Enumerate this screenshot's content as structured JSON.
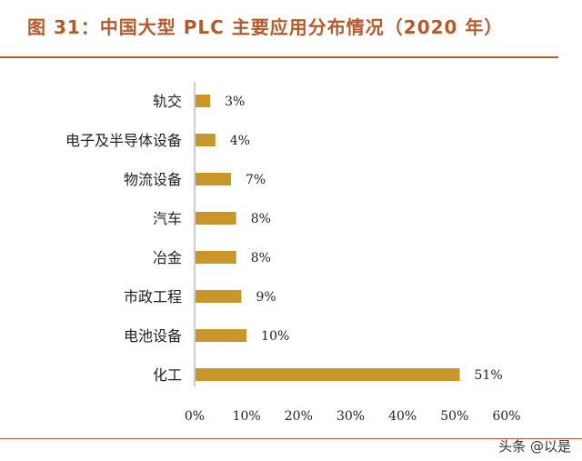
{
  "title": "图 31：中国大型 PLC 主要应用分布情况（2020 年）",
  "watermark": "头条 @以是",
  "colors": {
    "bar": "#c9962a",
    "accent": "#b65a2a"
  },
  "chart_data": {
    "type": "bar",
    "orientation": "horizontal",
    "categories": [
      "轨交",
      "电子及半导体设备",
      "物流设备",
      "汽车",
      "冶金",
      "市政工程",
      "电池设备",
      "化工"
    ],
    "values": [
      3,
      4,
      7,
      8,
      8,
      9,
      10,
      51
    ],
    "value_labels": [
      "3%",
      "4%",
      "7%",
      "8%",
      "8%",
      "9%",
      "10%",
      "51%"
    ],
    "xlim": [
      0,
      60
    ],
    "xticks": [
      "0%",
      "10%",
      "20%",
      "30%",
      "40%",
      "50%",
      "60%"
    ],
    "xlabel": "",
    "ylabel": "",
    "grid": false,
    "legend": "none"
  }
}
